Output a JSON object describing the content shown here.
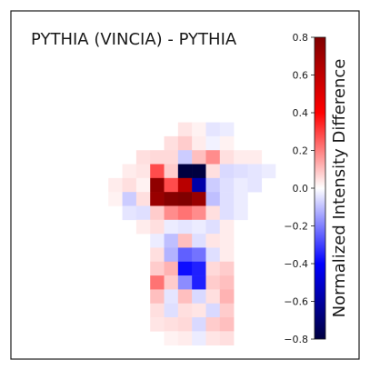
{
  "chart_data": {
    "type": "heatmap",
    "title": "PYTHIA (VINCIA) - PYTHIA",
    "colorbar": {
      "label": "Normalized Intensity Difference",
      "range": [
        -0.8,
        0.8
      ],
      "ticks": [
        "0.8",
        "0.6",
        "0.4",
        "0.2",
        "0.0",
        "−0.2",
        "−0.4",
        "−0.6",
        "−0.8"
      ],
      "tick_values": [
        0.8,
        0.6,
        0.4,
        0.2,
        0.0,
        -0.2,
        -0.4,
        -0.6,
        -0.8
      ],
      "colormap": "seismic",
      "colors": {
        "low": "#000040",
        "mid": "#ffffff",
        "high": "#800000"
      }
    },
    "grid": {
      "rows": 25,
      "cols": 25
    },
    "cells": [
      [
        8,
        12,
        0.04
      ],
      [
        8,
        13,
        0.02
      ],
      [
        8,
        14,
        -0.04
      ],
      [
        8,
        15,
        -0.03
      ],
      [
        9,
        11,
        0.05
      ],
      [
        9,
        12,
        0.08
      ],
      [
        9,
        13,
        0.03
      ],
      [
        9,
        14,
        -0.02
      ],
      [
        9,
        15,
        0.02
      ],
      [
        10,
        9,
        0.05
      ],
      [
        10,
        10,
        0.06
      ],
      [
        10,
        11,
        0.06
      ],
      [
        10,
        12,
        -0.08
      ],
      [
        10,
        13,
        0.1
      ],
      [
        10,
        14,
        0.18
      ],
      [
        10,
        15,
        0.05
      ],
      [
        10,
        16,
        0.03
      ],
      [
        10,
        17,
        0.03
      ],
      [
        11,
        8,
        0.03
      ],
      [
        11,
        9,
        0.04
      ],
      [
        11,
        10,
        0.28
      ],
      [
        11,
        11,
        0.08
      ],
      [
        11,
        12,
        -0.82
      ],
      [
        11,
        13,
        -0.95
      ],
      [
        11,
        14,
        0.05
      ],
      [
        11,
        15,
        -0.06
      ],
      [
        11,
        16,
        -0.05
      ],
      [
        11,
        17,
        -0.04
      ],
      [
        11,
        18,
        -0.03
      ],
      [
        12,
        7,
        0.03
      ],
      [
        12,
        8,
        0.05
      ],
      [
        12,
        9,
        0.02
      ],
      [
        12,
        10,
        0.75
      ],
      [
        12,
        11,
        0.28
      ],
      [
        12,
        12,
        0.62
      ],
      [
        12,
        13,
        -0.58
      ],
      [
        12,
        14,
        -0.08
      ],
      [
        12,
        15,
        -0.05
      ],
      [
        12,
        16,
        -0.03
      ],
      [
        12,
        17,
        -0.04
      ],
      [
        13,
        7,
        0.02
      ],
      [
        13,
        8,
        -0.08
      ],
      [
        13,
        9,
        0.05
      ],
      [
        13,
        10,
        0.72
      ],
      [
        13,
        11,
        0.78
      ],
      [
        13,
        12,
        0.92
      ],
      [
        13,
        13,
        0.72
      ],
      [
        13,
        14,
        -0.1
      ],
      [
        13,
        15,
        -0.05
      ],
      [
        13,
        16,
        -0.03
      ],
      [
        14,
        8,
        -0.04
      ],
      [
        14,
        9,
        -0.05
      ],
      [
        14,
        10,
        0.08
      ],
      [
        14,
        11,
        0.18
      ],
      [
        14,
        12,
        0.22
      ],
      [
        14,
        13,
        0.18
      ],
      [
        14,
        14,
        0.05
      ],
      [
        14,
        15,
        -0.05
      ],
      [
        14,
        16,
        -0.03
      ],
      [
        15,
        9,
        0.03
      ],
      [
        15,
        10,
        0.05
      ],
      [
        15,
        11,
        -0.03
      ],
      [
        15,
        12,
        -0.04
      ],
      [
        15,
        13,
        -0.03
      ],
      [
        15,
        14,
        -0.05
      ],
      [
        15,
        15,
        0.03
      ],
      [
        16,
        10,
        -0.03
      ],
      [
        16,
        11,
        -0.1
      ],
      [
        16,
        12,
        0.1
      ],
      [
        16,
        13,
        -0.05
      ],
      [
        16,
        14,
        0.04
      ],
      [
        16,
        15,
        0.03
      ],
      [
        17,
        10,
        0.05
      ],
      [
        17,
        11,
        -0.12
      ],
      [
        17,
        12,
        -0.25
      ],
      [
        17,
        13,
        -0.22
      ],
      [
        17,
        14,
        -0.05
      ],
      [
        17,
        15,
        0.03
      ],
      [
        18,
        10,
        0.08
      ],
      [
        18,
        11,
        0.12
      ],
      [
        18,
        12,
        -0.38
      ],
      [
        18,
        13,
        -0.35
      ],
      [
        18,
        14,
        0.06
      ],
      [
        18,
        15,
        0.08
      ],
      [
        19,
        10,
        0.22
      ],
      [
        19,
        11,
        0.08
      ],
      [
        19,
        12,
        -0.18
      ],
      [
        19,
        13,
        -0.35
      ],
      [
        19,
        14,
        0.08
      ],
      [
        19,
        15,
        0.1
      ],
      [
        20,
        10,
        0.1
      ],
      [
        20,
        11,
        -0.04
      ],
      [
        20,
        12,
        0.1
      ],
      [
        20,
        13,
        -0.06
      ],
      [
        20,
        14,
        0.05
      ],
      [
        20,
        15,
        0.12
      ],
      [
        21,
        10,
        0.05
      ],
      [
        21,
        11,
        -0.05
      ],
      [
        21,
        12,
        0.05
      ],
      [
        21,
        13,
        0.04
      ],
      [
        21,
        14,
        -0.06
      ],
      [
        21,
        15,
        0.08
      ],
      [
        22,
        10,
        0.04
      ],
      [
        22,
        11,
        0.05
      ],
      [
        22,
        12,
        0.06
      ],
      [
        22,
        13,
        -0.06
      ],
      [
        22,
        14,
        0.08
      ],
      [
        22,
        15,
        0.1
      ],
      [
        23,
        11,
        0.02
      ],
      [
        23,
        12,
        0.03
      ],
      [
        23,
        13,
        -0.03
      ],
      [
        23,
        14,
        0.04
      ],
      [
        23,
        15,
        0.05
      ]
    ]
  }
}
